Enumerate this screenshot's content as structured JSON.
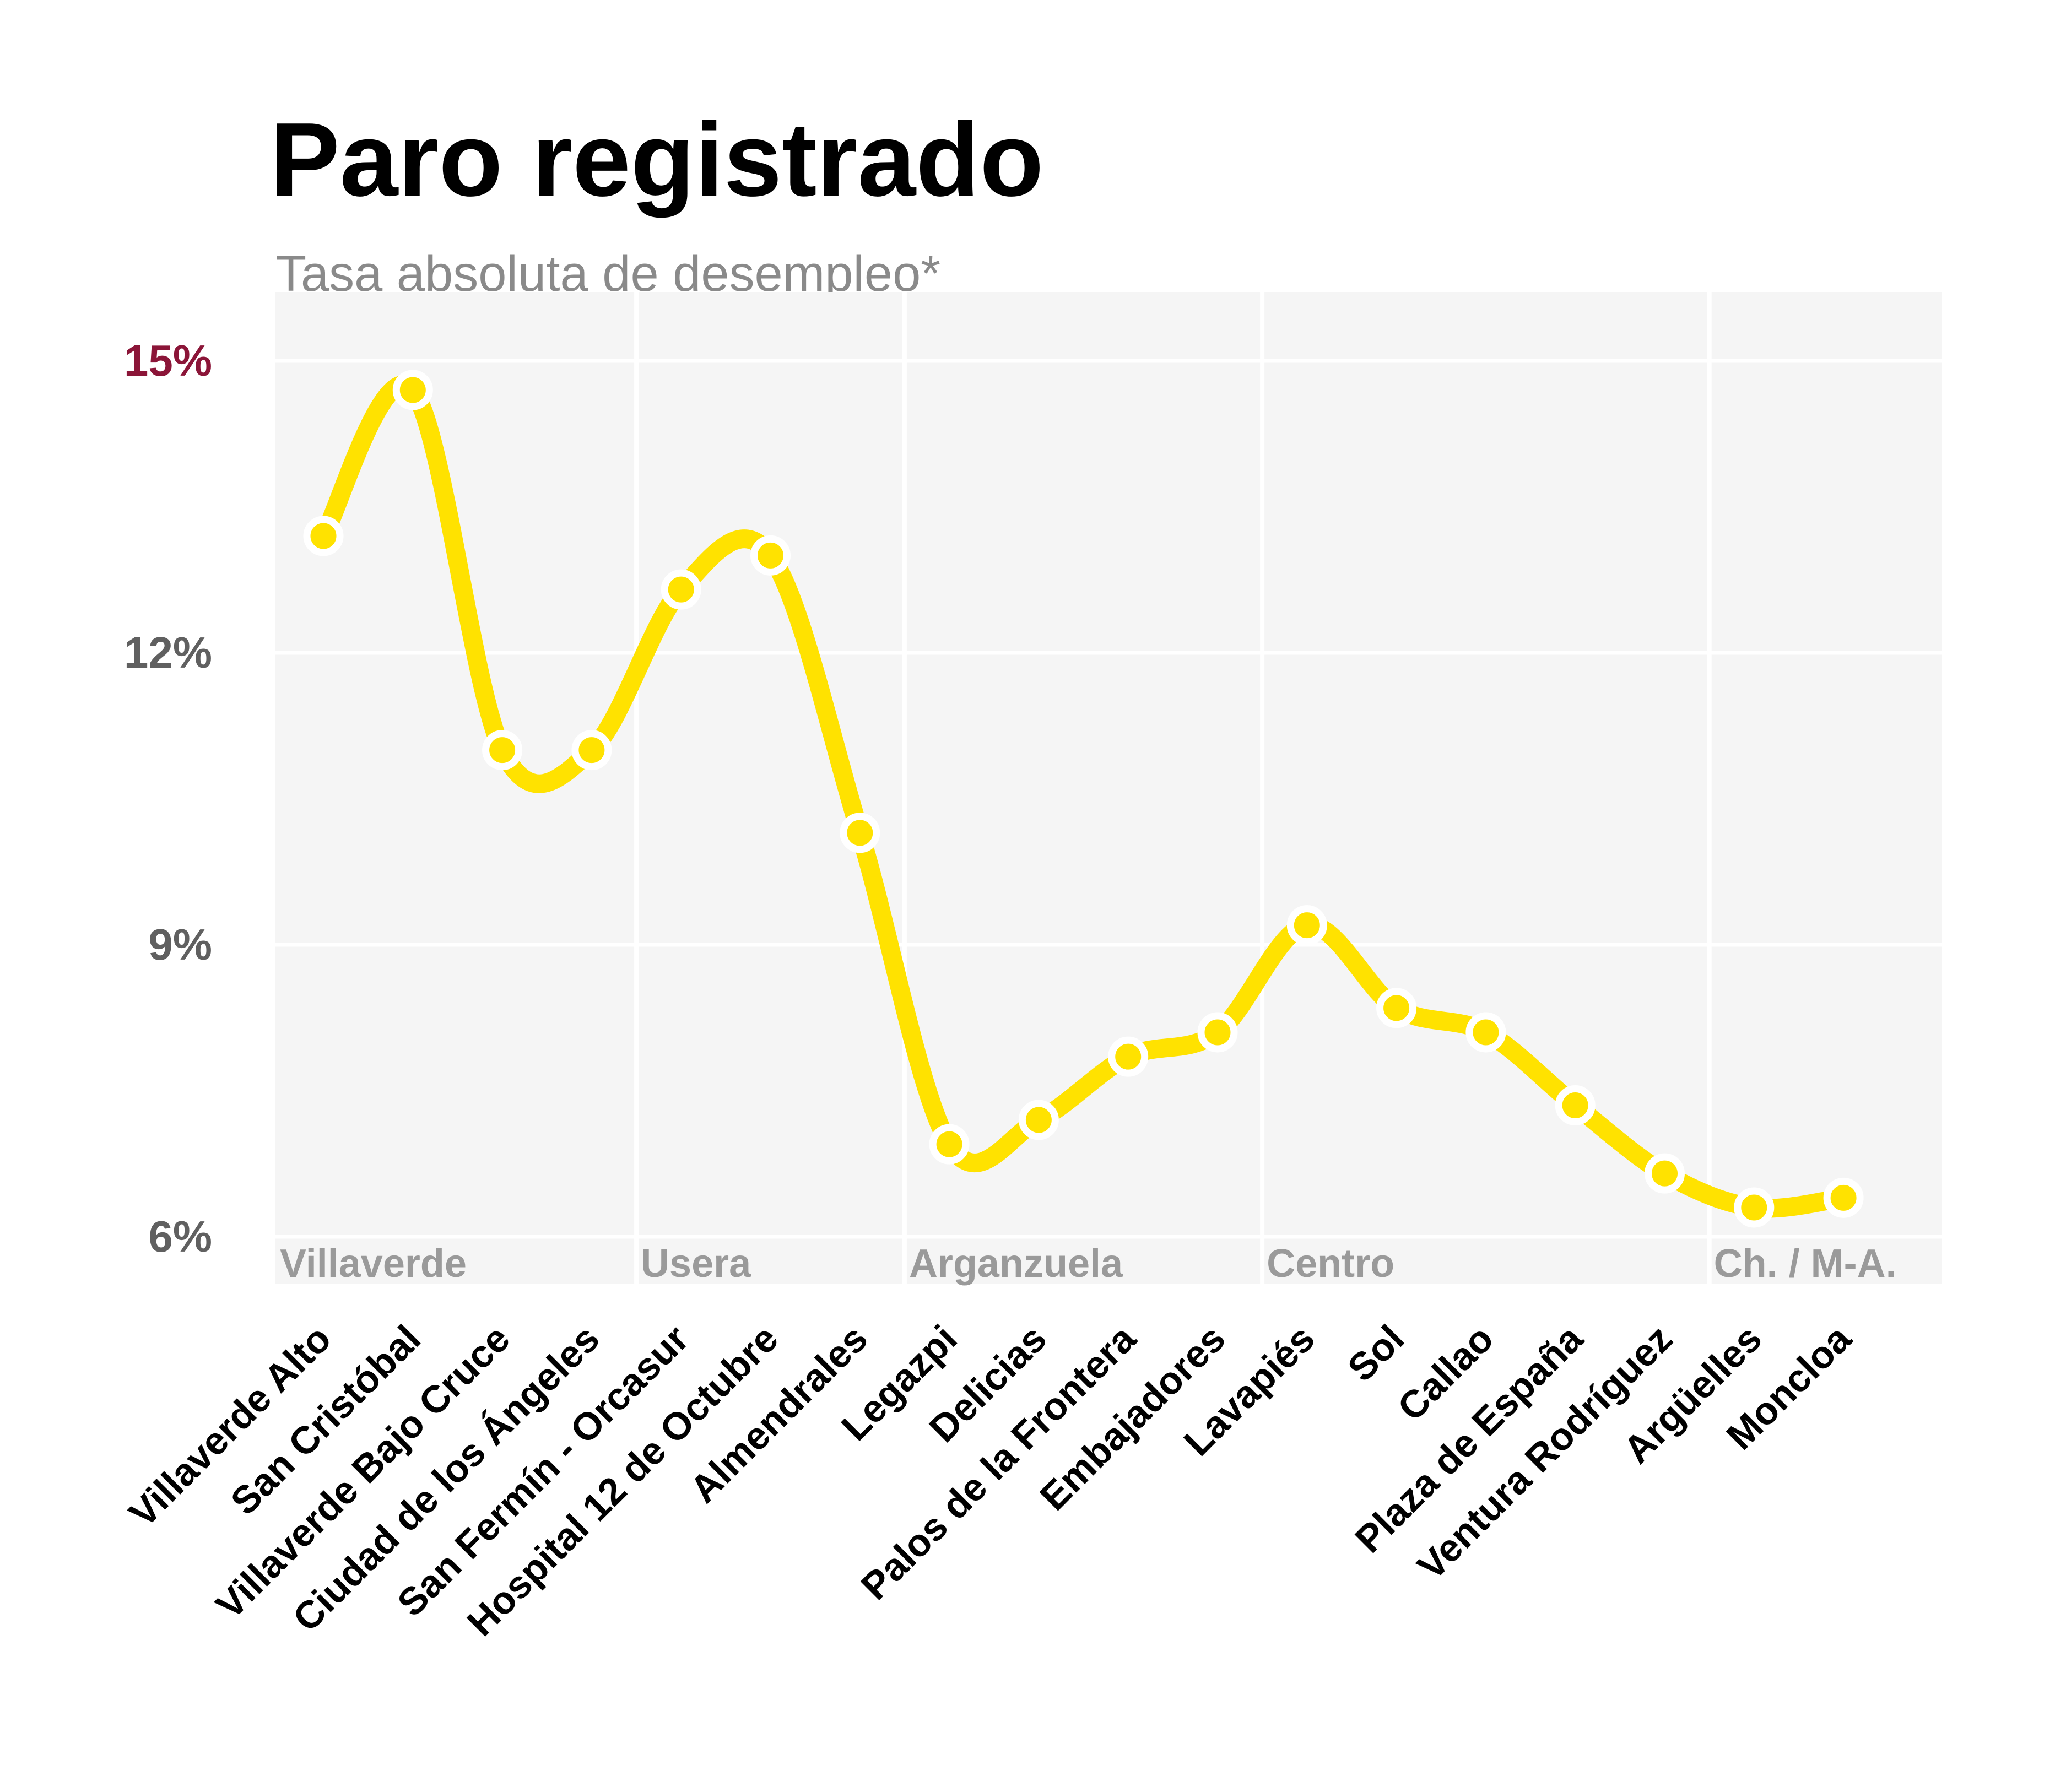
{
  "chart_data": {
    "type": "line",
    "title": "Paro registrado",
    "subtitle": "Tasa absoluta de desempleo*",
    "categories": [
      "Villaverde Alto",
      "San Cristóbal",
      "Villaverde Bajo Cruce",
      "Ciudad de los Ángeles",
      "San Fermín - Orcasur",
      "Hospital 12 de Octubre",
      "Almendrales",
      "Legazpi",
      "Delicias",
      "Palos de la Frontera",
      "Embajadores",
      "Lavapiés",
      "Sol",
      "Callao",
      "Plaza de España",
      "Ventura Rodríguez",
      "Argüelles",
      "Moncloa"
    ],
    "values": [
      13.2,
      14.7,
      11.0,
      11.0,
      12.65,
      13.0,
      10.15,
      6.95,
      7.2,
      7.85,
      8.1,
      9.2,
      8.35,
      8.1,
      7.35,
      6.65,
      6.3,
      6.4
    ],
    "ylim": [
      6,
      15
    ],
    "yticks": [
      6,
      9,
      12,
      15
    ],
    "ytick_labels": [
      "6%",
      "9%",
      "12%",
      "15%"
    ],
    "groups": [
      {
        "label": "Villaverde",
        "start": 0,
        "end": 3
      },
      {
        "label": "Usera",
        "start": 4,
        "end": 6
      },
      {
        "label": "Arganzuela",
        "start": 7,
        "end": 10
      },
      {
        "label": "Centro",
        "start": 11,
        "end": 15
      },
      {
        "label": "Ch. / M-A.",
        "start": 16,
        "end": 17
      }
    ],
    "grid": true,
    "colors": {
      "line": "#ffe200",
      "panel": "#f5f5f5",
      "grid": "#ffffff",
      "ytick": "#606060",
      "ytick_highlight": "#8b1538",
      "group_label": "#9a9a9a"
    }
  }
}
